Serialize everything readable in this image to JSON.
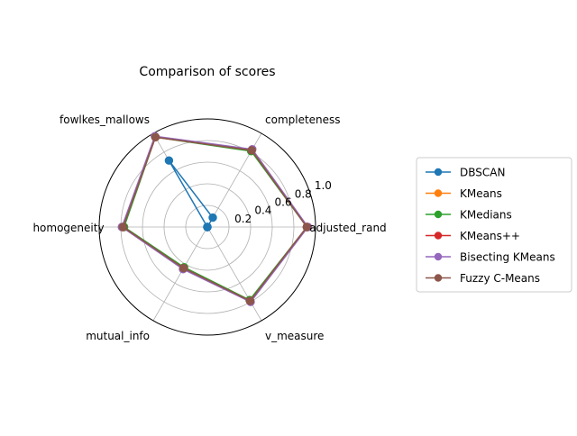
{
  "chart_data": {
    "type": "radar",
    "title": "Comparison of scores",
    "axes": [
      "adjusted_rand",
      "completeness",
      "fowlkes_mallows",
      "homogeneity",
      "mutual_info",
      "v_measure"
    ],
    "rlim": [
      0,
      1.0
    ],
    "r_ticks": [
      0.2,
      0.4,
      0.6,
      0.8,
      1.0
    ],
    "r_tick_labels": [
      "0.2",
      "0.4",
      "0.6",
      "0.8",
      "1.0"
    ],
    "grid": true,
    "legend_position": "right",
    "series": [
      {
        "name": "DBSCAN",
        "color": "#1f77b4",
        "values": [
          0.0,
          0.1,
          0.71,
          0.0,
          0.0,
          0.0
        ]
      },
      {
        "name": "KMeans",
        "color": "#ff7f0e",
        "values": [
          0.92,
          0.82,
          0.96,
          0.78,
          0.44,
          0.79
        ]
      },
      {
        "name": "KMedians",
        "color": "#2ca02c",
        "values": [
          0.92,
          0.81,
          0.96,
          0.77,
          0.43,
          0.78
        ]
      },
      {
        "name": "KMeans++",
        "color": "#d62728",
        "values": [
          0.92,
          0.82,
          0.96,
          0.78,
          0.44,
          0.79
        ]
      },
      {
        "name": "Bisecting KMeans",
        "color": "#9467bd",
        "values": [
          0.93,
          0.83,
          0.97,
          0.79,
          0.45,
          0.8
        ]
      },
      {
        "name": "Fuzzy C-Means",
        "color": "#8c564b",
        "values": [
          0.92,
          0.82,
          0.96,
          0.78,
          0.44,
          0.79
        ]
      }
    ]
  }
}
